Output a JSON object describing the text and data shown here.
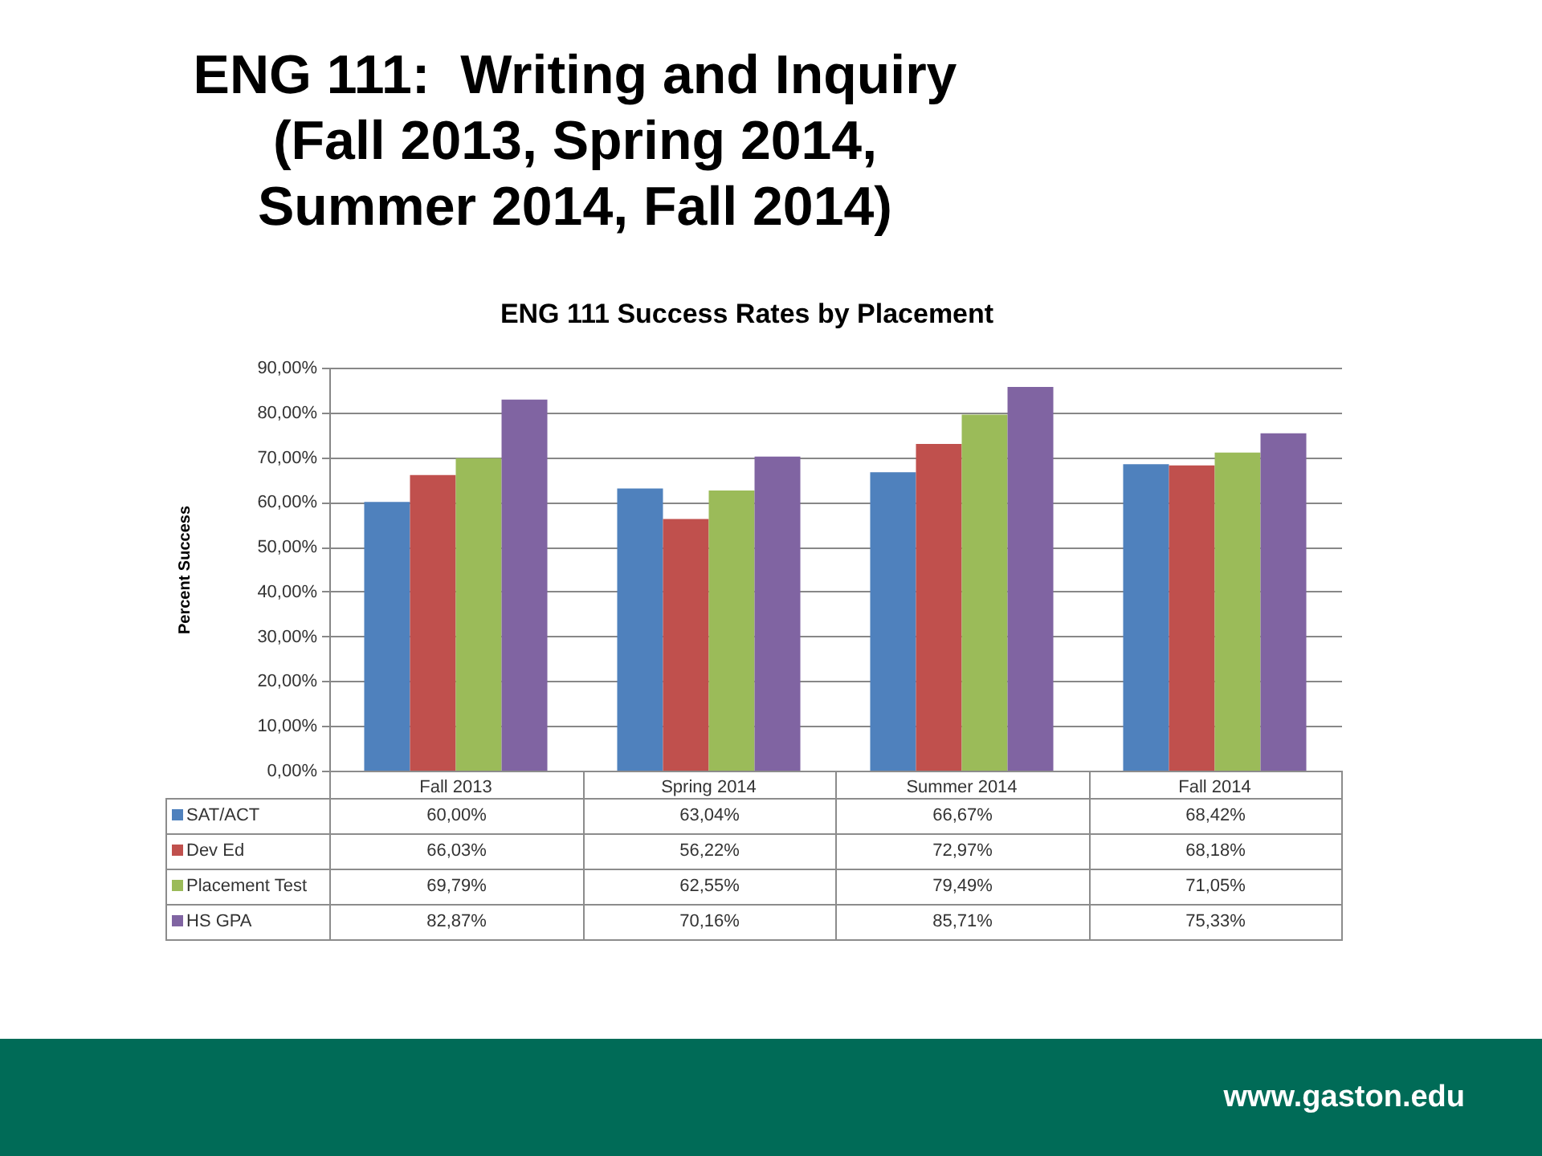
{
  "chart_data": {
    "type": "bar",
    "title": "ENG 111:  Writing and Inquiry (Fall 2013, Spring 2014, Summer 2014, Fall 2014)",
    "subtitle": "ENG 111 Success Rates by Placement",
    "ylabel": "Percent Success",
    "categories": [
      "Fall 2013",
      "Spring 2014",
      "Summer 2014",
      "Fall 2014"
    ],
    "series": [
      {
        "name": "SAT/ACT",
        "color": "#4f81bd",
        "values": [
          60.0,
          63.04,
          66.67,
          68.42
        ],
        "value_labels": [
          "60,00%",
          "63,04%",
          "66,67%",
          "68,42%"
        ]
      },
      {
        "name": "Dev Ed",
        "color": "#c0504d",
        "values": [
          66.03,
          56.22,
          72.97,
          68.18
        ],
        "value_labels": [
          "66,03%",
          "56,22%",
          "72,97%",
          "68,18%"
        ]
      },
      {
        "name": "Placement Test",
        "color": "#9bbb59",
        "values": [
          69.79,
          62.55,
          79.49,
          71.05
        ],
        "value_labels": [
          "69,79%",
          "62,55%",
          "79,49%",
          "71,05%"
        ]
      },
      {
        "name": "HS GPA",
        "color": "#8064a2",
        "values": [
          82.87,
          70.16,
          85.71,
          75.33
        ],
        "value_labels": [
          "82,87%",
          "70,16%",
          "85,71%",
          "75,33%"
        ]
      }
    ],
    "ylim": [
      0,
      90
    ],
    "yticks": [
      {
        "value": 0,
        "label": "0,00%"
      },
      {
        "value": 10,
        "label": "10,00%"
      },
      {
        "value": 20,
        "label": "20,00%"
      },
      {
        "value": 30,
        "label": "30,00%"
      },
      {
        "value": 40,
        "label": "40,00%"
      },
      {
        "value": 50,
        "label": "50,00%"
      },
      {
        "value": 60,
        "label": "60,00%"
      },
      {
        "value": 70,
        "label": "70,00%"
      },
      {
        "value": 80,
        "label": "80,00%"
      },
      {
        "value": 90,
        "label": "90,00%"
      }
    ],
    "grid": "y",
    "legend": "bottom",
    "annotations": [
      "www.gaston.edu"
    ]
  }
}
